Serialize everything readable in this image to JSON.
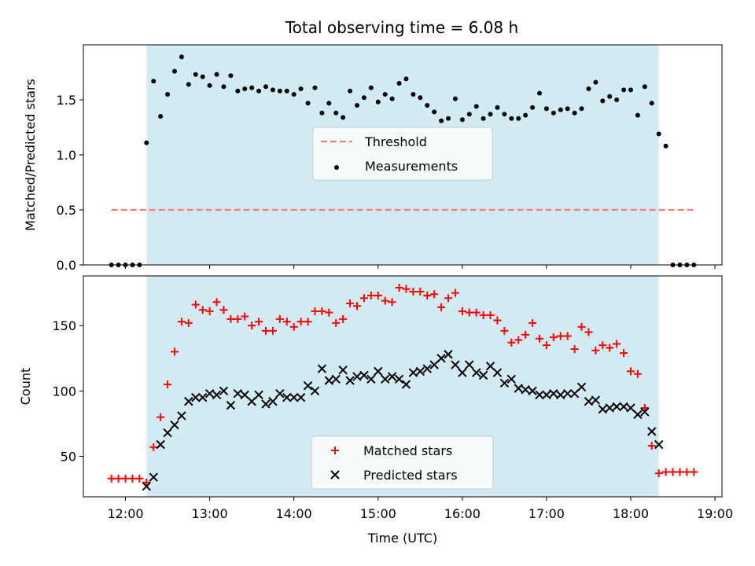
{
  "title": "Total observing time = 6.08 h",
  "colors": {
    "shade": "#add8e6",
    "threshold": "#f08080",
    "measurements": "#000000",
    "matched": "#ff0000",
    "predicted": "#000000"
  },
  "chart_data": [
    {
      "type": "scatter",
      "ylabel": "Matched/Predicted stars",
      "ylim": [
        0,
        2.0
      ],
      "yticks": [
        0.0,
        0.5,
        1.0,
        1.5
      ],
      "ytick_labels": [
        "0.0",
        "0.5",
        "1.0",
        "1.5"
      ],
      "shaded_interval": [
        "12:15",
        "18:20"
      ],
      "legend": {
        "placement": "center",
        "entries": [
          "Threshold",
          "Measurements"
        ]
      },
      "series": [
        {
          "name": "Threshold",
          "kind": "dashed-line",
          "x": [
            "11:50",
            "18:45"
          ],
          "values": [
            0.5,
            0.5
          ]
        },
        {
          "name": "Measurements",
          "kind": "dots",
          "x": [
            "11:50",
            "11:55",
            "12:00",
            "12:05",
            "12:10",
            "12:15",
            "12:20",
            "12:25",
            "12:30",
            "12:35",
            "12:40",
            "12:45",
            "12:50",
            "12:55",
            "13:00",
            "13:05",
            "13:10",
            "13:15",
            "13:20",
            "13:25",
            "13:30",
            "13:35",
            "13:40",
            "13:45",
            "13:50",
            "13:55",
            "14:00",
            "14:05",
            "14:10",
            "14:15",
            "14:20",
            "14:25",
            "14:30",
            "14:35",
            "14:40",
            "14:45",
            "14:50",
            "14:55",
            "15:00",
            "15:05",
            "15:10",
            "15:15",
            "15:20",
            "15:25",
            "15:30",
            "15:35",
            "15:40",
            "15:45",
            "15:50",
            "15:55",
            "16:00",
            "16:05",
            "16:10",
            "16:15",
            "16:20",
            "16:25",
            "16:30",
            "16:35",
            "16:40",
            "16:45",
            "16:50",
            "16:55",
            "17:00",
            "17:05",
            "17:10",
            "17:15",
            "17:20",
            "17:25",
            "17:30",
            "17:35",
            "17:40",
            "17:45",
            "17:50",
            "17:55",
            "18:00",
            "18:05",
            "18:10",
            "18:15",
            "18:20",
            "18:25",
            "18:30",
            "18:35",
            "18:40",
            "18:45"
          ],
          "values": [
            0,
            0,
            0,
            0,
            0,
            1.11,
            1.67,
            1.35,
            1.55,
            1.76,
            1.89,
            1.64,
            1.73,
            1.71,
            1.63,
            1.73,
            1.62,
            1.72,
            1.58,
            1.6,
            1.61,
            1.58,
            1.62,
            1.59,
            1.58,
            1.58,
            1.55,
            1.6,
            1.47,
            1.61,
            1.38,
            1.47,
            1.38,
            1.34,
            1.58,
            1.45,
            1.52,
            1.61,
            1.48,
            1.55,
            1.51,
            1.65,
            1.69,
            1.55,
            1.52,
            1.45,
            1.39,
            1.31,
            1.33,
            1.51,
            1.32,
            1.37,
            1.44,
            1.33,
            1.37,
            1.43,
            1.37,
            1.33,
            1.33,
            1.36,
            1.43,
            1.56,
            1.42,
            1.38,
            1.41,
            1.42,
            1.38,
            1.42,
            1.6,
            1.66,
            1.49,
            1.53,
            1.5,
            1.59,
            1.59,
            1.36,
            1.62,
            1.47,
            1.19,
            1.08,
            0,
            0,
            0,
            0
          ]
        }
      ]
    },
    {
      "type": "scatter",
      "xlabel": "Time (UTC)",
      "ylabel": "Count",
      "ylim": [
        19,
        188
      ],
      "xlim": [
        "11:30",
        "19:05"
      ],
      "xtick_labels": [
        "12:00",
        "13:00",
        "14:00",
        "15:00",
        "16:00",
        "17:00",
        "18:00",
        "19:00"
      ],
      "yticks": [
        50,
        100,
        150
      ],
      "ytick_labels": [
        "50",
        "100",
        "150"
      ],
      "shaded_interval": [
        "12:15",
        "18:20"
      ],
      "legend": {
        "placement": "bottom-center",
        "entries": [
          "Matched stars",
          "Predicted stars"
        ]
      },
      "series": [
        {
          "name": "Matched stars",
          "marker": "plus",
          "x": [
            "11:50",
            "11:55",
            "12:00",
            "12:05",
            "12:10",
            "12:15",
            "12:20",
            "12:25",
            "12:30",
            "12:35",
            "12:40",
            "12:45",
            "12:50",
            "12:55",
            "13:00",
            "13:05",
            "13:10",
            "13:15",
            "13:20",
            "13:25",
            "13:30",
            "13:35",
            "13:40",
            "13:45",
            "13:50",
            "13:55",
            "14:00",
            "14:05",
            "14:10",
            "14:15",
            "14:20",
            "14:25",
            "14:30",
            "14:35",
            "14:40",
            "14:45",
            "14:50",
            "14:55",
            "15:00",
            "15:05",
            "15:10",
            "15:15",
            "15:20",
            "15:25",
            "15:30",
            "15:35",
            "15:40",
            "15:45",
            "15:50",
            "15:55",
            "16:00",
            "16:05",
            "16:10",
            "16:15",
            "16:20",
            "16:25",
            "16:30",
            "16:35",
            "16:40",
            "16:45",
            "16:50",
            "16:55",
            "17:00",
            "17:05",
            "17:10",
            "17:15",
            "17:20",
            "17:25",
            "17:30",
            "17:35",
            "17:40",
            "17:45",
            "17:50",
            "17:55",
            "18:00",
            "18:05",
            "18:10",
            "18:15",
            "18:20",
            "18:25",
            "18:30",
            "18:35",
            "18:40",
            "18:45"
          ],
          "values": [
            33,
            33,
            33,
            33,
            33,
            30,
            57,
            80,
            105,
            130,
            153,
            152,
            166,
            162,
            161,
            168,
            162,
            155,
            155,
            157,
            150,
            153,
            146,
            146,
            155,
            153,
            149,
            153,
            153,
            161,
            161,
            160,
            152,
            155,
            167,
            165,
            171,
            173,
            173,
            169,
            168,
            179,
            178,
            176,
            176,
            173,
            174,
            164,
            171,
            175,
            161,
            160,
            160,
            158,
            158,
            154,
            146,
            137,
            139,
            143,
            152,
            140,
            135,
            141,
            142,
            142,
            132,
            149,
            145,
            131,
            135,
            133,
            136,
            129,
            115,
            113,
            87,
            58,
            37,
            38,
            38,
            38,
            38,
            38
          ]
        },
        {
          "name": "Predicted stars",
          "marker": "x",
          "x": [
            "12:15",
            "12:20",
            "12:25",
            "12:30",
            "12:35",
            "12:40",
            "12:45",
            "12:50",
            "12:55",
            "13:00",
            "13:05",
            "13:10",
            "13:15",
            "13:20",
            "13:25",
            "13:30",
            "13:35",
            "13:40",
            "13:45",
            "13:50",
            "13:55",
            "14:00",
            "14:05",
            "14:10",
            "14:15",
            "14:20",
            "14:25",
            "14:30",
            "14:35",
            "14:40",
            "14:45",
            "14:50",
            "14:55",
            "15:00",
            "15:05",
            "15:10",
            "15:15",
            "15:20",
            "15:25",
            "15:30",
            "15:35",
            "15:40",
            "15:45",
            "15:50",
            "15:55",
            "16:00",
            "16:05",
            "16:10",
            "16:15",
            "16:20",
            "16:25",
            "16:30",
            "16:35",
            "16:40",
            "16:45",
            "16:50",
            "16:55",
            "17:00",
            "17:05",
            "17:10",
            "17:15",
            "17:20",
            "17:25",
            "17:30",
            "17:35",
            "17:40",
            "17:45",
            "17:50",
            "17:55",
            "18:00",
            "18:05",
            "18:10",
            "18:15",
            "18:20"
          ],
          "values": [
            27,
            34,
            59,
            68,
            74,
            81,
            92,
            95,
            95,
            98,
            97,
            100,
            89,
            98,
            97,
            92,
            97,
            90,
            92,
            98,
            95,
            95,
            95,
            104,
            100,
            117,
            108,
            109,
            116,
            108,
            111,
            112,
            109,
            115,
            109,
            111,
            109,
            105,
            114,
            115,
            117,
            120,
            125,
            128,
            120,
            114,
            120,
            114,
            112,
            119,
            114,
            106,
            109,
            102,
            101,
            100,
            97,
            97,
            98,
            97,
            98,
            98,
            103,
            92,
            93,
            86,
            87,
            88,
            88,
            87,
            82,
            84,
            69,
            59
          ]
        }
      ]
    }
  ]
}
